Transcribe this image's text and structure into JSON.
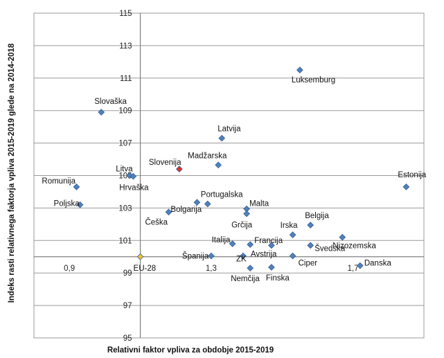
{
  "chart_data": {
    "type": "scatter",
    "title": "",
    "xlabel": "Relativni faktor vpliva za obdobje 2015-2019",
    "ylabel": "Indeks rasti relativnega faktorja vpliva 2015-2019 glede na 2014-2018",
    "xlim": [
      0.8,
      1.9
    ],
    "ylim": [
      95,
      115
    ],
    "y_ticks": [
      "95",
      "97",
      "99",
      "101",
      "103",
      "105",
      "107",
      "109",
      "111",
      "113",
      "115"
    ],
    "x_ticks": [
      {
        "x": 0.9,
        "label": "0,9"
      },
      {
        "x": 1.3,
        "label": "1,3"
      },
      {
        "x": 1.7,
        "label": "1,7"
      }
    ],
    "x_axis_crosses_y": 100,
    "y_axis_crosses_x": 1.1,
    "grid": "horizontal",
    "legend": "none",
    "colors": {
      "default": "#4f81bd",
      "highlight_slovenia": "#e03030",
      "highlight_eu": "#f2c037"
    },
    "points": [
      {
        "label": "Luksemburg",
        "x": 1.55,
        "y": 111.5
      },
      {
        "label": "Slovaška",
        "x": 0.99,
        "y": 108.9
      },
      {
        "label": "Latvija",
        "x": 1.33,
        "y": 107.3
      },
      {
        "label": "Madžarska",
        "x": 1.32,
        "y": 105.65
      },
      {
        "label": "Slovenija",
        "x": 1.21,
        "y": 105.4,
        "color": "highlight_slovenia"
      },
      {
        "label": "Litva",
        "x": 1.07,
        "y": 105.0
      },
      {
        "label": "Hrvaška",
        "x": 1.08,
        "y": 104.95
      },
      {
        "label": "Romunija",
        "x": 0.92,
        "y": 104.3
      },
      {
        "label": "Estonija",
        "x": 1.85,
        "y": 104.3
      },
      {
        "label": "Poljska",
        "x": 0.93,
        "y": 103.2
      },
      {
        "label": "Bolgarija",
        "x": 1.26,
        "y": 103.35
      },
      {
        "label": "Portugalska",
        "x": 1.29,
        "y": 103.25
      },
      {
        "label": "Češka",
        "x": 1.18,
        "y": 102.75
      },
      {
        "label": "Malta",
        "x": 1.4,
        "y": 102.95
      },
      {
        "label": "Grčija",
        "x": 1.4,
        "y": 102.65
      },
      {
        "label": "Belgija",
        "x": 1.58,
        "y": 101.95
      },
      {
        "label": "Irska",
        "x": 1.53,
        "y": 101.35
      },
      {
        "label": "Nizozemska",
        "x": 1.67,
        "y": 101.2
      },
      {
        "label": "Italija",
        "x": 1.36,
        "y": 100.8
      },
      {
        "label": "Francija",
        "x": 1.41,
        "y": 100.75
      },
      {
        "label": "Avstrija",
        "x": 1.47,
        "y": 100.7
      },
      {
        "label": "Švedska",
        "x": 1.58,
        "y": 100.7
      },
      {
        "label": "Španija",
        "x": 1.3,
        "y": 100.05
      },
      {
        "label": "ZK",
        "x": 1.39,
        "y": 100.05
      },
      {
        "label": "Ciper",
        "x": 1.53,
        "y": 100.05
      },
      {
        "label": "EU-28",
        "x": 1.1,
        "y": 100.0,
        "color": "highlight_eu"
      },
      {
        "label": "Nemčija",
        "x": 1.41,
        "y": 99.3
      },
      {
        "label": "Finska",
        "x": 1.47,
        "y": 99.35
      },
      {
        "label": "Danska",
        "x": 1.72,
        "y": 99.45
      }
    ]
  }
}
